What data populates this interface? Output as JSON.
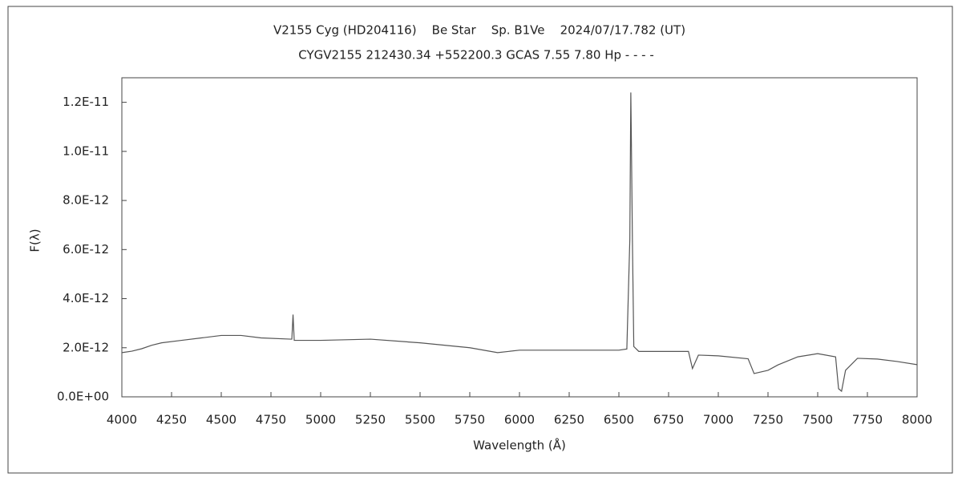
{
  "chart_data": {
    "type": "line",
    "title": "V2155 Cyg (HD204116)    Be Star    Sp. B1Ve    2024/07/17.782 (UT)",
    "subtitle": "CYGV2155 212430.34 +552200.3 GCAS 7.55 7.80 Hp - - - -",
    "x_label": "Wavelength (Å)",
    "y_label": "F(λ)",
    "xlim": [
      4000,
      8000
    ],
    "xticks": [
      4000,
      4250,
      4500,
      4750,
      5000,
      5250,
      5500,
      5750,
      6000,
      6250,
      6500,
      6750,
      7000,
      7250,
      7500,
      7750,
      8000
    ],
    "ylim": [
      0,
      1.3e-11
    ],
    "yticks": [
      {
        "value": 0,
        "label": "0.0E+00"
      },
      {
        "value": 2e-12,
        "label": "2.0E-12"
      },
      {
        "value": 4e-12,
        "label": "4.0E-12"
      },
      {
        "value": 6e-12,
        "label": "6.0E-12"
      },
      {
        "value": 8e-12,
        "label": "8.0E-12"
      },
      {
        "value": 1e-11,
        "label": "1.0E-11"
      },
      {
        "value": 1.2e-11,
        "label": "1.2E-11"
      }
    ],
    "color": "#555555",
    "x": [
      4000,
      4050,
      4100,
      4150,
      4200,
      4300,
      4400,
      4500,
      4600,
      4700,
      4850,
      4855,
      4861,
      4867,
      5000,
      5250,
      5500,
      5750,
      5890,
      6000,
      6250,
      6500,
      6540,
      6555,
      6560,
      6563,
      6568,
      6575,
      6600,
      6850,
      6870,
      6900,
      7000,
      7150,
      7180,
      7250,
      7300,
      7400,
      7500,
      7590,
      7605,
      7620,
      7640,
      7700,
      7800,
      7900,
      8000
    ],
    "values": [
      1.8e-12,
      1.86e-12,
      1.96e-12,
      2.1e-12,
      2.2e-12,
      2.3e-12,
      2.4e-12,
      2.5e-12,
      2.5e-12,
      2.4e-12,
      2.35e-12,
      2.35e-12,
      3.35e-12,
      2.3e-12,
      2.3e-12,
      2.35e-12,
      2.2e-12,
      2e-12,
      1.8e-12,
      1.9e-12,
      1.9e-12,
      1.9e-12,
      1.95e-12,
      6.4e-12,
      1.24e-11,
      1.03e-11,
      6.4e-12,
      2.05e-12,
      1.85e-12,
      1.85e-12,
      1.15e-12,
      1.7e-12,
      1.67e-12,
      1.55e-12,
      9.5e-13,
      1.08e-12,
      1.3e-12,
      1.63e-12,
      1.76e-12,
      1.63e-12,
      3.3e-13,
      2.3e-13,
      1.08e-12,
      1.57e-12,
      1.54e-12,
      1.44e-12,
      1.31e-12
    ]
  }
}
